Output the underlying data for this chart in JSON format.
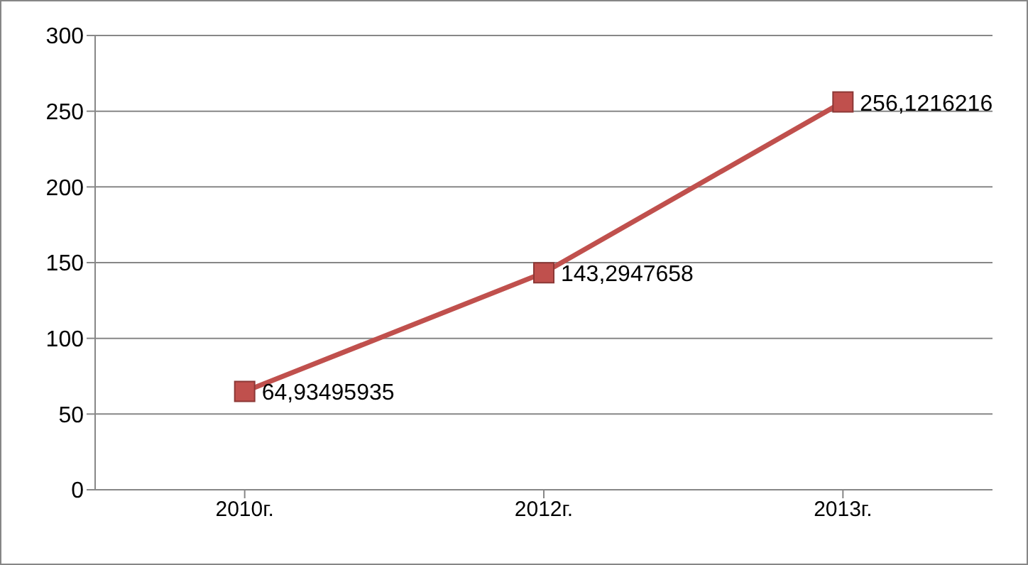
{
  "chart_data": {
    "type": "line",
    "categories": [
      "2010г.",
      "2012г.",
      "2013г."
    ],
    "series": [
      {
        "color": "#c0504d",
        "values": [
          64.93495935,
          143.2947658,
          256.1216216
        ],
        "value_labels": [
          "64,93495935",
          "143,2947658",
          "256,1216216"
        ]
      }
    ],
    "ylim": [
      0,
      300
    ],
    "yticks": [
      0,
      50,
      100,
      150,
      200,
      250,
      300
    ],
    "grid": "y",
    "marker": "square",
    "line_style": "solid"
  }
}
